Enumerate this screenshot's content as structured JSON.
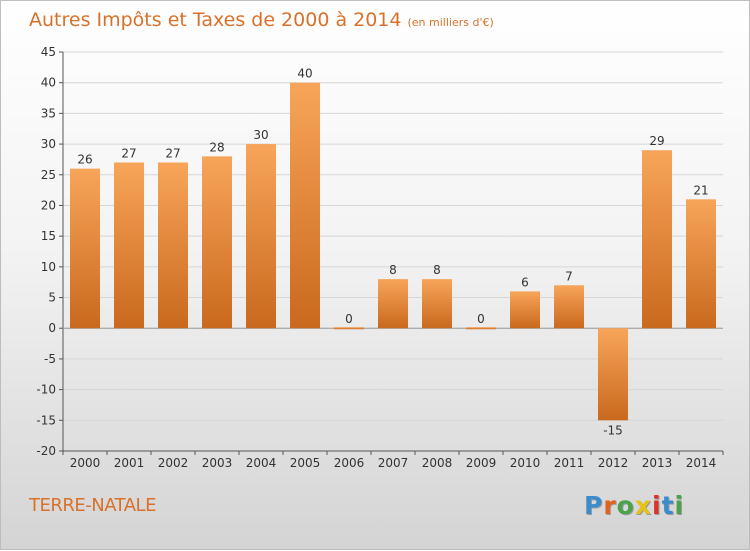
{
  "title": {
    "main": "Autres Impôts et Taxes de 2000 à 2014",
    "unit": "(en milliers d'€)"
  },
  "place": "TERRE-NATALE",
  "logo": {
    "text": "Proxiti",
    "colors": [
      "#3b8ccf",
      "#e2621d",
      "#4aa34a",
      "#e5c21a",
      "#d9342b",
      "#3b8ccf",
      "#4aa34a"
    ]
  },
  "colors": {
    "bar_top": "#f7a55a",
    "bar_bottom": "#c9691d",
    "text_accent": "#d9712a"
  },
  "chart_data": {
    "type": "bar",
    "categories": [
      "2000",
      "2001",
      "2002",
      "2003",
      "2004",
      "2005",
      "2006",
      "2007",
      "2008",
      "2009",
      "2010",
      "2011",
      "2012",
      "2013",
      "2014"
    ],
    "values": [
      26,
      27,
      27,
      28,
      30,
      40,
      0,
      8,
      8,
      0,
      6,
      7,
      -15,
      29,
      21
    ],
    "ylim": [
      -20,
      45
    ],
    "yticks": [
      -20,
      -15,
      -10,
      -5,
      0,
      5,
      10,
      15,
      20,
      25,
      30,
      35,
      40,
      45
    ],
    "grid": true
  }
}
